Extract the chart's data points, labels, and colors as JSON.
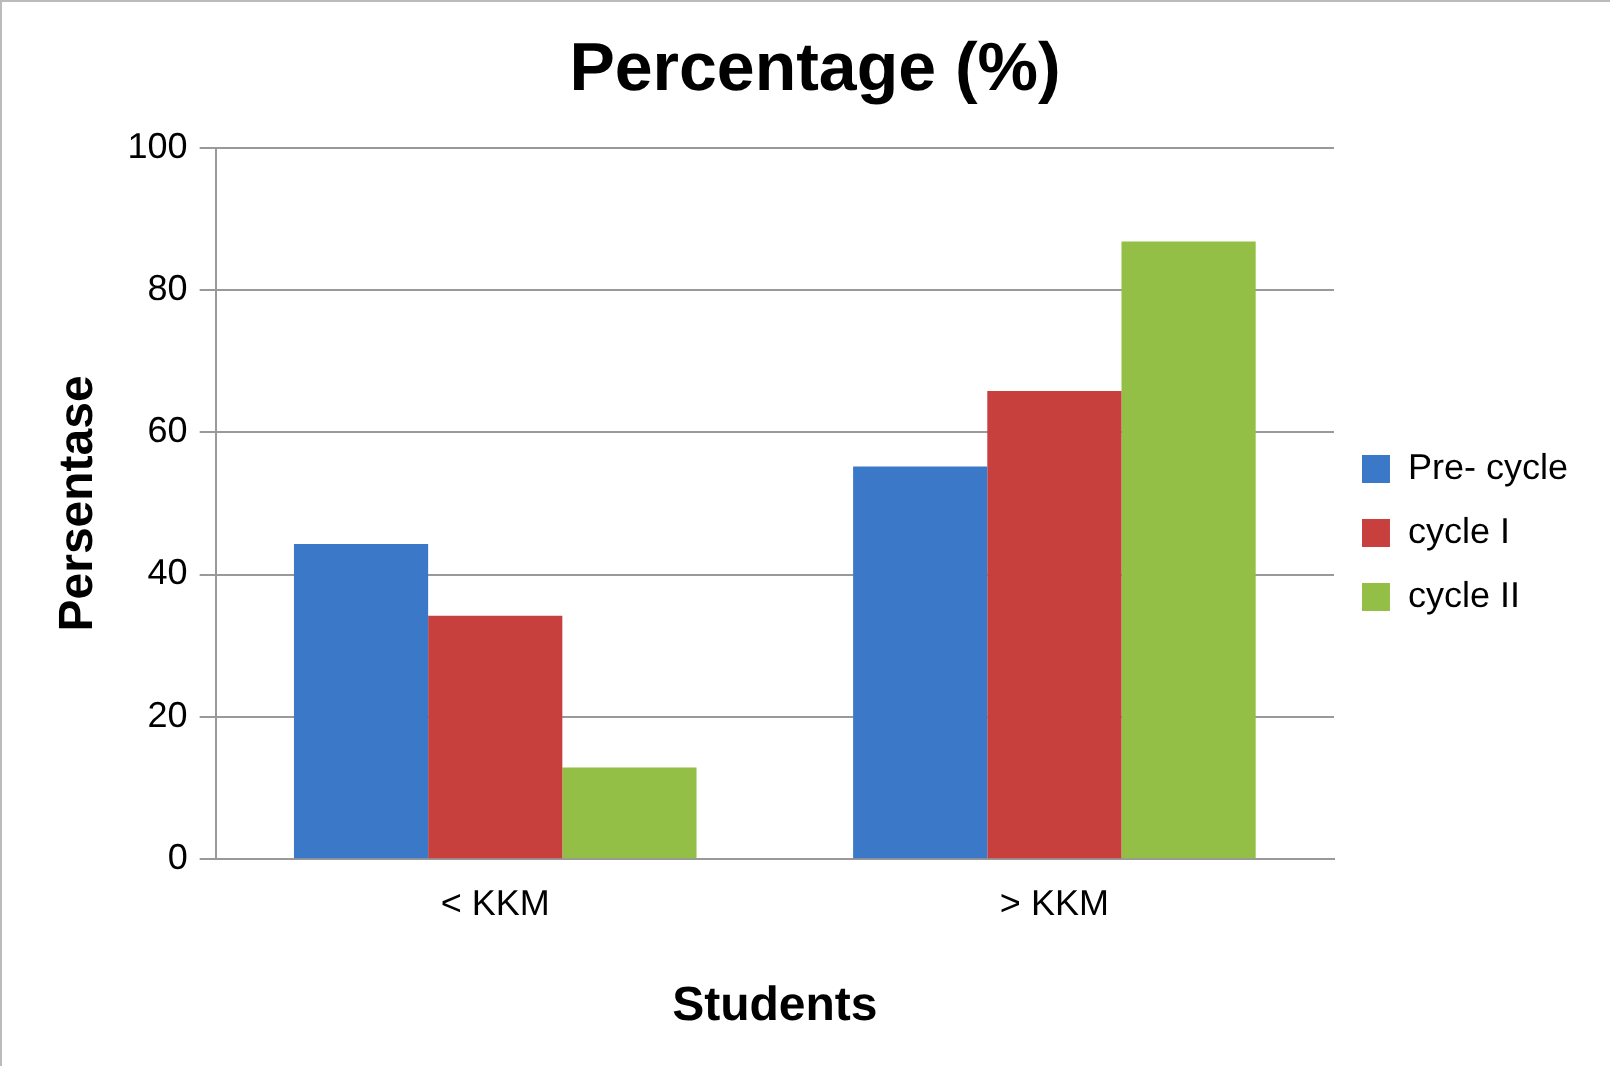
{
  "chart_data": {
    "type": "bar",
    "title": "Percentage (%)",
    "xlabel": "Students",
    "ylabel": "Persentase",
    "categories": [
      "< KKM",
      "> KKM"
    ],
    "series": [
      {
        "name": "Pre- cycle",
        "color": "#3c78c8",
        "values": [
          44.3,
          55.2
        ]
      },
      {
        "name": "cycle I",
        "color": "#c8403e",
        "values": [
          34.2,
          65.8
        ]
      },
      {
        "name": "cycle II",
        "color": "#94bf46",
        "values": [
          12.9,
          86.8
        ]
      }
    ],
    "ylim": [
      0,
      100
    ],
    "yticks": [
      0,
      20,
      40,
      60,
      80,
      100
    ],
    "grid": "y",
    "legend": "right"
  }
}
